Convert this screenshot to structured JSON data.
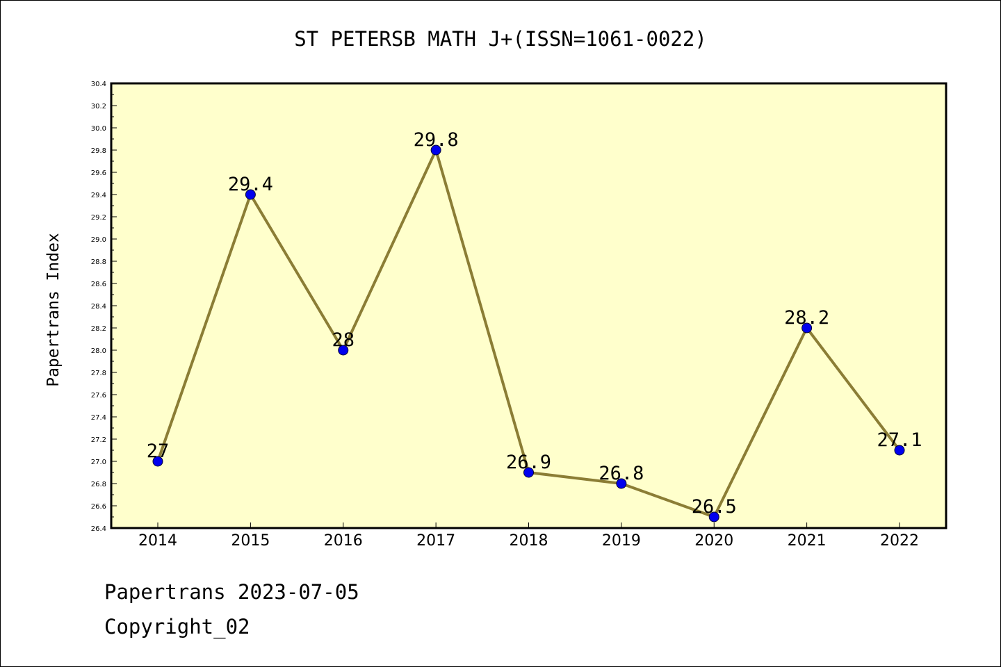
{
  "chart_data": {
    "type": "line",
    "title": "ST PETERSB MATH J+(ISSN=1061-0022)",
    "xlabel": "",
    "ylabel": "Papertrans Index",
    "categories": [
      "2014",
      "2015",
      "2016",
      "2017",
      "2018",
      "2019",
      "2020",
      "2021",
      "2022"
    ],
    "series": [
      {
        "values": [
          27.0,
          29.4,
          28.0,
          29.8,
          26.9,
          26.8,
          26.5,
          28.2,
          27.1
        ],
        "data_labels": [
          "27",
          "29.4",
          "28",
          "29.8",
          "26.9",
          "26.8",
          "26.5",
          "28.2",
          "27.1"
        ]
      }
    ],
    "ylim": [
      26.4,
      30.4
    ],
    "yticks": [
      "26.4",
      "26.6",
      "26.8",
      "27.0",
      "27.2",
      "27.4",
      "27.6",
      "27.8",
      "28.0",
      "28.2",
      "28.4",
      "28.6",
      "28.8",
      "29.0",
      "29.2",
      "29.4",
      "29.6",
      "29.8",
      "30.0",
      "30.2",
      "30.4"
    ],
    "grid": false,
    "legend": "none",
    "colors": {
      "plot_background": "#ffffcc",
      "line": "#8b7d35",
      "marker": "#0000ee",
      "axis": "#000000"
    }
  },
  "footer": {
    "date_line": "Papertrans 2023-07-05",
    "copyright_line": "Copyright_02"
  }
}
